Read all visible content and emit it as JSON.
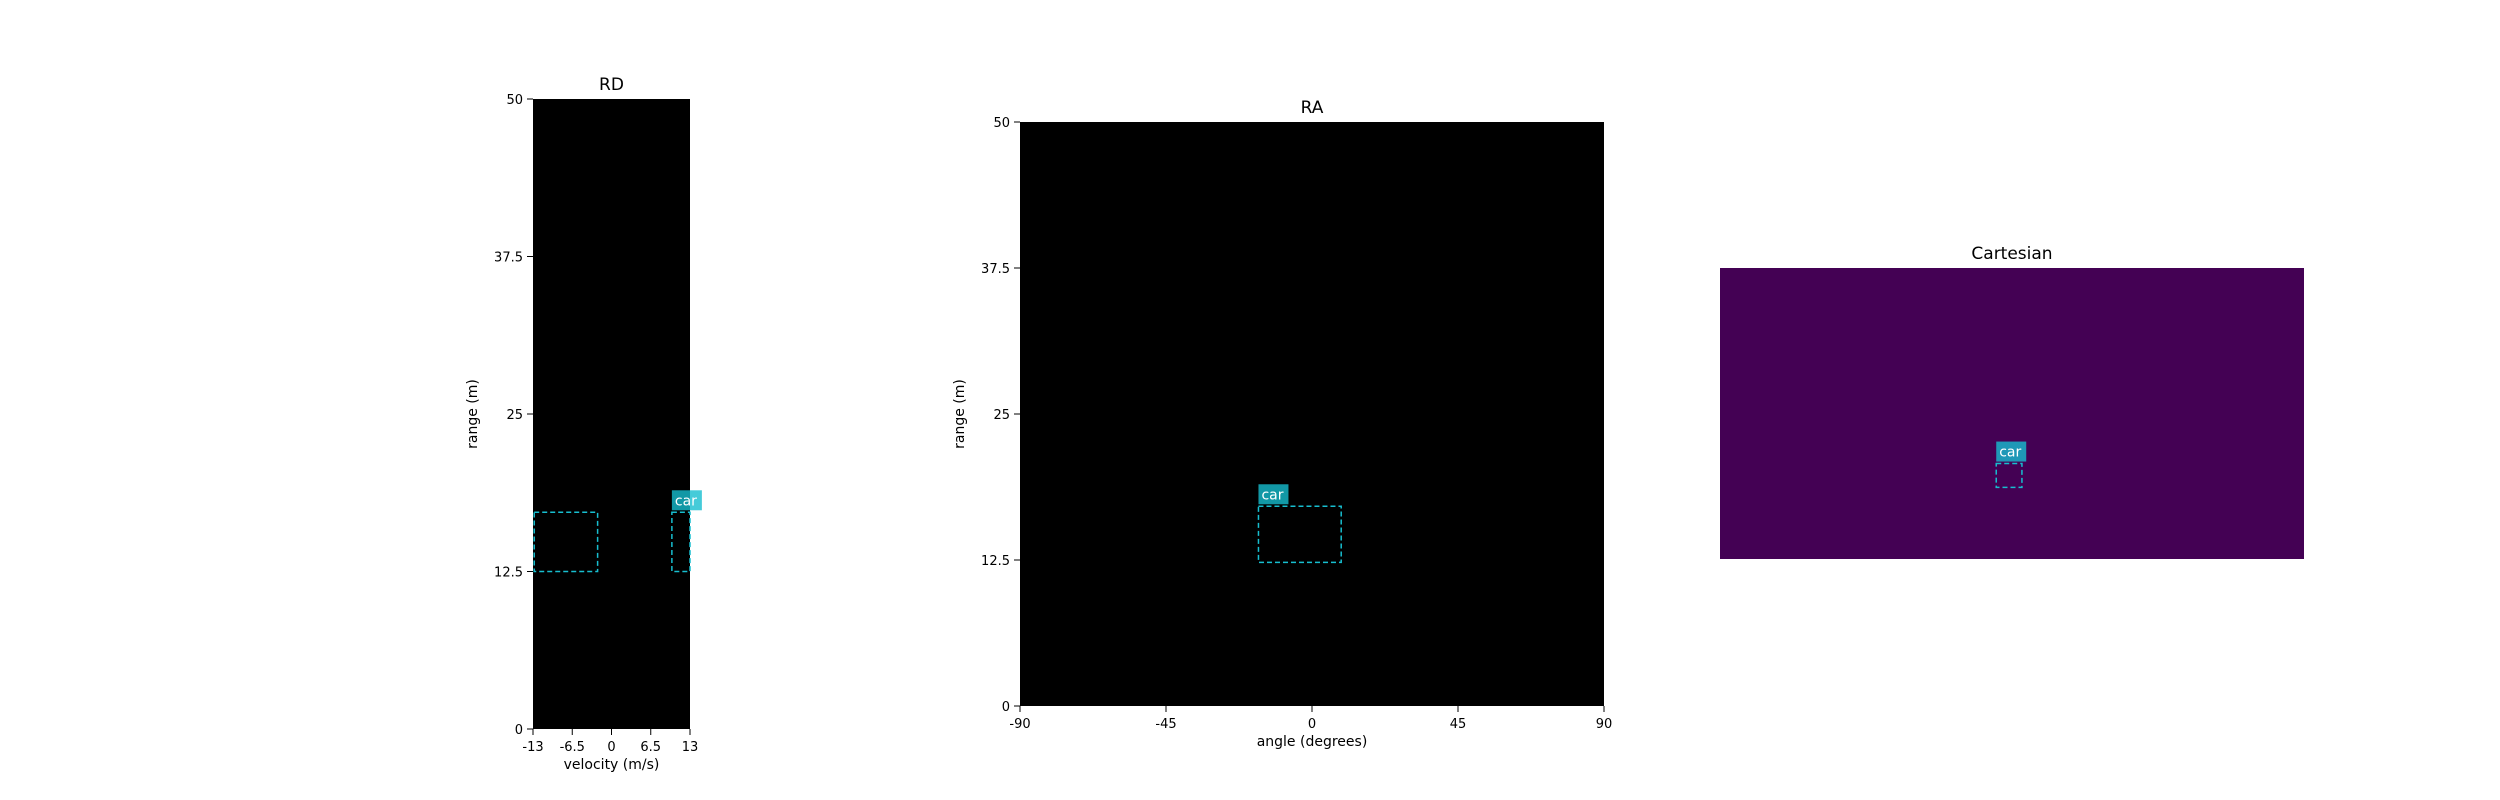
{
  "chart_data": [
    {
      "type": "heatmap",
      "title": "RD",
      "xlabel": "velocity (m/s)",
      "ylabel": "range (m)",
      "xlim": [
        -13,
        13
      ],
      "ylim": [
        0,
        50
      ],
      "xticks": [
        "-13",
        "-6.5",
        "0",
        "6.5",
        "13"
      ],
      "xtick_values": [
        -13,
        -6.5,
        0,
        6.5,
        13
      ],
      "yticks": [
        "0",
        "12.5",
        "25",
        "37.5",
        "50"
      ],
      "ytick_values": [
        0,
        12.5,
        25,
        37.5,
        50
      ],
      "background_color": "#000000",
      "annotations": [
        {
          "label": "",
          "x0": -12.8,
          "x1": -2.3,
          "y0": 12.5,
          "y1": 17.2,
          "color": "#17becf"
        },
        {
          "label": "car",
          "x0": 10.0,
          "x1": 13.0,
          "y0": 12.5,
          "y1": 17.2,
          "color": "#17becf"
        }
      ]
    },
    {
      "type": "heatmap",
      "title": "RA",
      "xlabel": "angle (degrees)",
      "ylabel": "range (m)",
      "xlim": [
        -90,
        90
      ],
      "ylim": [
        0,
        50
      ],
      "xticks": [
        "-90",
        "-45",
        "0",
        "45",
        "90"
      ],
      "xtick_values": [
        -90,
        -45,
        0,
        45,
        90
      ],
      "yticks": [
        "0",
        "12.5",
        "25",
        "37.5",
        "50"
      ],
      "ytick_values": [
        0,
        12.5,
        25,
        37.5,
        50
      ],
      "background_color": "#000000",
      "annotations": [
        {
          "label": "car",
          "x0": -16.5,
          "x1": 9.0,
          "y0": 12.3,
          "y1": 17.1,
          "color": "#17becf"
        }
      ]
    },
    {
      "type": "heatmap",
      "title": "Cartesian",
      "xlabel": "",
      "ylabel": "",
      "axes_visible": false,
      "xlim": [
        -50,
        50
      ],
      "ylim": [
        0,
        50
      ],
      "background_color": "#440154",
      "annotations": [
        {
          "label": "car",
          "x0": -2.7,
          "x1": 1.7,
          "y0": 12.3,
          "y1": 16.4,
          "color": "#17becf"
        }
      ]
    }
  ]
}
